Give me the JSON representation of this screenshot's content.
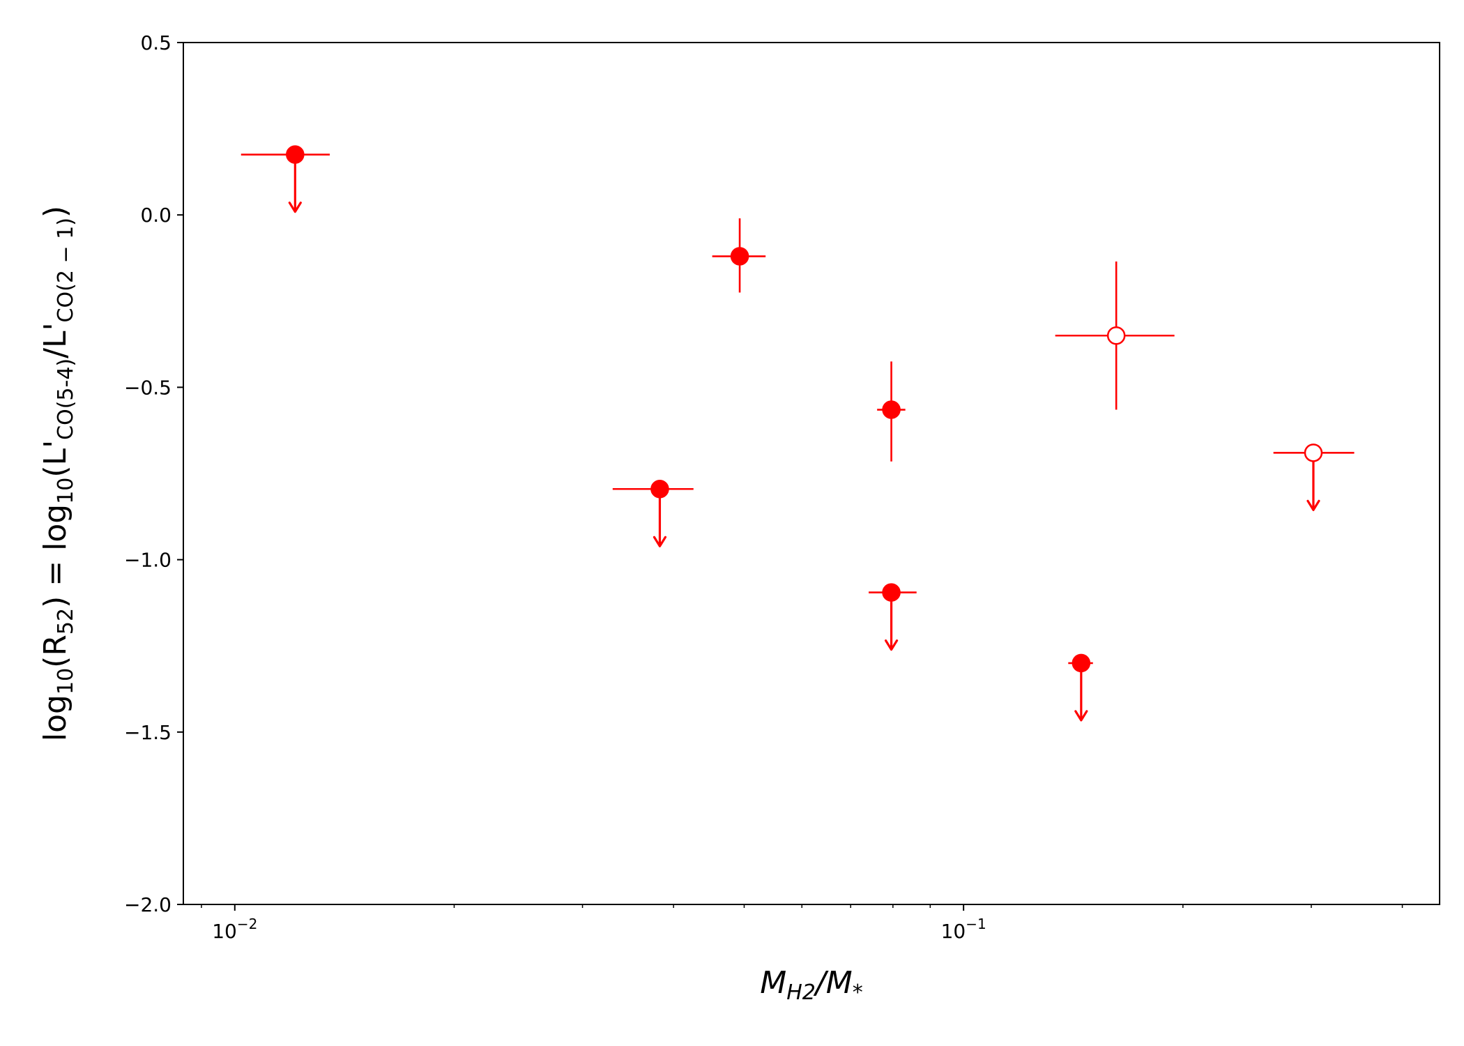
{
  "chart_data": {
    "type": "scatter",
    "xscale": "log",
    "xlim": [
      0.0085,
      0.45
    ],
    "ylim": [
      -2.0,
      0.5
    ],
    "xlabel": {
      "main": "M",
      "sub1": "H2",
      "slash": "/M",
      "sub2": "*"
    },
    "ylabel": {
      "p1": "log",
      "s1": "10",
      "p2": "(R",
      "s2": "52",
      "p3": ") = log",
      "s3": "10",
      "p4": "(L'",
      "s4": "CO(5-4)",
      "p5": "/L'",
      "s5": "CO(2 − 1)",
      "p6": ")"
    },
    "yticks": [
      {
        "value": 0.5,
        "label": "0.5"
      },
      {
        "value": 0.0,
        "label": "0.0"
      },
      {
        "value": -0.5,
        "label": "−0.5"
      },
      {
        "value": -1.0,
        "label": "−1.0"
      },
      {
        "value": -1.5,
        "label": "−1.5"
      },
      {
        "value": -2.0,
        "label": "−2.0"
      }
    ],
    "xticks_major": [
      {
        "value": 0.01,
        "base": "10",
        "exp": "−2"
      },
      {
        "value": 0.1,
        "base": "10",
        "exp": "−1"
      }
    ],
    "color": "#ff0000",
    "points": [
      {
        "x": 0.0121,
        "y": 0.175,
        "xlo": 0.0102,
        "xhi": 0.0135,
        "upper_limit": true,
        "filled": true
      },
      {
        "x": 0.0383,
        "y": -0.795,
        "xlo": 0.033,
        "xhi": 0.0426,
        "upper_limit": true,
        "filled": true
      },
      {
        "x": 0.0493,
        "y": -0.12,
        "xlo": 0.0452,
        "xhi": 0.0535,
        "ylo": -0.225,
        "yhi": -0.01,
        "filled": true
      },
      {
        "x": 0.0796,
        "y": -0.565,
        "xlo": 0.0761,
        "xhi": 0.0832,
        "ylo": -0.715,
        "yhi": -0.425,
        "filled": true
      },
      {
        "x": 0.0796,
        "y": -1.095,
        "xlo": 0.0741,
        "xhi": 0.0862,
        "upper_limit": true,
        "filled": true
      },
      {
        "x": 0.145,
        "y": -1.3,
        "xlo": 0.1392,
        "xhi": 0.1505,
        "upper_limit": true,
        "filled": true
      },
      {
        "x": 0.162,
        "y": -0.35,
        "xlo": 0.1336,
        "xhi": 0.1947,
        "ylo": -0.565,
        "yhi": -0.135,
        "filled": false
      },
      {
        "x": 0.302,
        "y": -0.69,
        "xlo": 0.2662,
        "xhi": 0.3436,
        "upper_limit": true,
        "filled": false
      }
    ]
  }
}
